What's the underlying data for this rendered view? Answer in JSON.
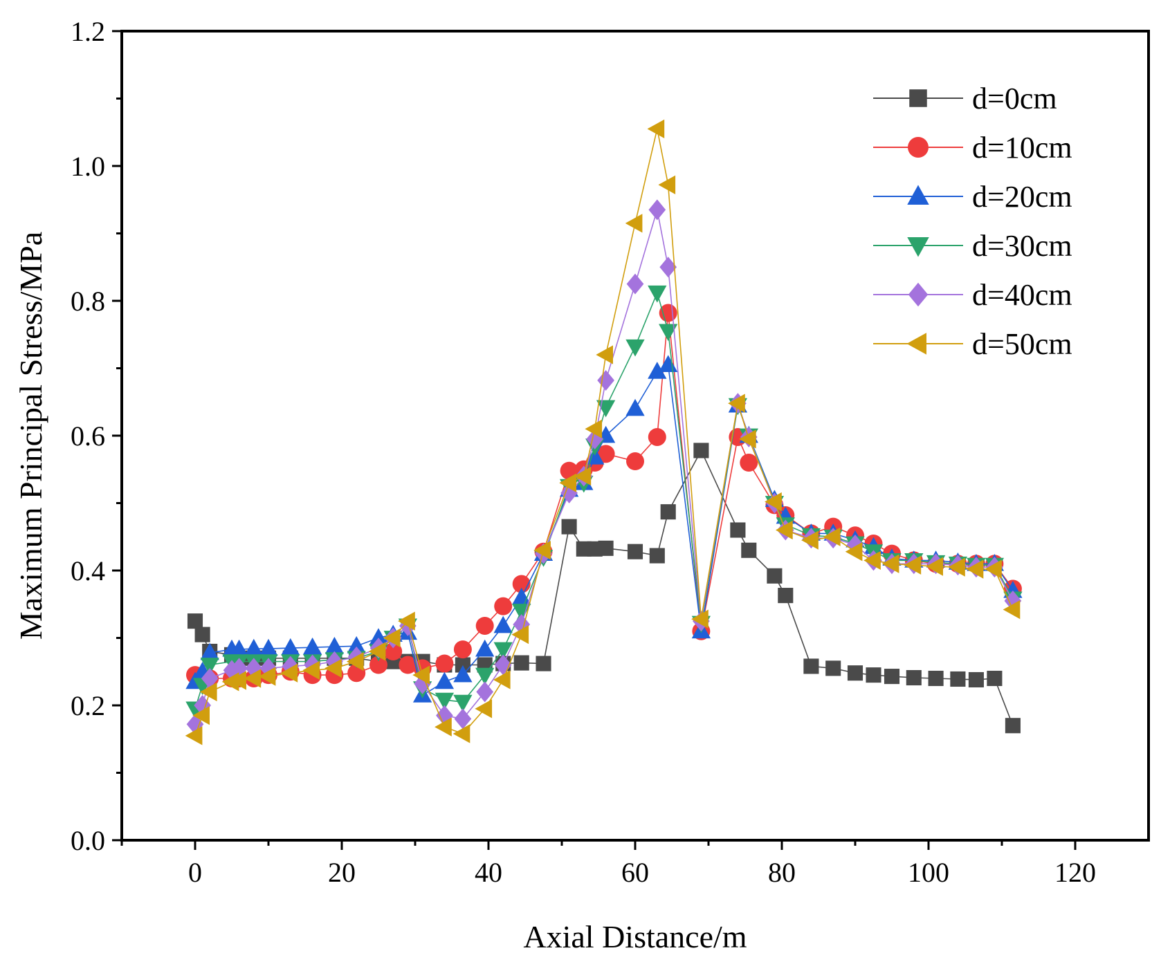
{
  "chart_data": {
    "type": "line",
    "title": "",
    "xlabel": "Axial Distance/m",
    "ylabel": "Maximum Principal Stress/MPa",
    "xlim": [
      -10,
      130
    ],
    "ylim": [
      0,
      1.2
    ],
    "xticks": [
      0,
      20,
      40,
      60,
      80,
      100,
      120
    ],
    "yticks": [
      0.0,
      0.2,
      0.4,
      0.6,
      0.8,
      1.0,
      1.2
    ],
    "xtick_labels": [
      "0",
      "20",
      "40",
      "60",
      "80",
      "100",
      "120"
    ],
    "ytick_labels": [
      "0.0",
      "0.2",
      "0.4",
      "0.6",
      "0.8",
      "1.0",
      "1.2"
    ],
    "legend_position": "top-right",
    "x": [
      0,
      1,
      2,
      5,
      6,
      8,
      10,
      13,
      16,
      19,
      22,
      25,
      27,
      29,
      31,
      34,
      36.5,
      39.5,
      42,
      44.5,
      47.5,
      51,
      53,
      54.5,
      56,
      60,
      63,
      64.5,
      69,
      74,
      75.5,
      79,
      80.5,
      84,
      87,
      90,
      92.5,
      95,
      98,
      101,
      104,
      106.5,
      109,
      111.5
    ],
    "series": [
      {
        "name": "d=0cm",
        "color": "#4a4a4a",
        "marker": "square",
        "values": [
          0.325,
          0.305,
          0.28,
          0.275,
          0.27,
          0.27,
          0.27,
          0.27,
          0.27,
          0.27,
          0.27,
          0.265,
          0.265,
          0.265,
          0.265,
          0.26,
          0.26,
          0.26,
          0.262,
          0.263,
          0.262,
          0.465,
          0.432,
          0.432,
          0.433,
          0.428,
          0.422,
          0.487,
          0.578,
          0.46,
          0.43,
          0.392,
          0.363,
          0.258,
          0.255,
          0.248,
          0.245,
          0.243,
          0.241,
          0.24,
          0.239,
          0.238,
          0.24,
          0.17
        ]
      },
      {
        "name": "d=10cm",
        "color": "#ee3c3c",
        "marker": "circle",
        "values": [
          0.245,
          0.24,
          0.24,
          0.24,
          0.24,
          0.24,
          0.245,
          0.25,
          0.245,
          0.245,
          0.248,
          0.26,
          0.28,
          0.26,
          0.255,
          0.262,
          0.283,
          0.318,
          0.347,
          0.38,
          0.428,
          0.548,
          0.55,
          0.56,
          0.573,
          0.562,
          0.598,
          0.782,
          0.31,
          0.598,
          0.56,
          0.497,
          0.482,
          0.455,
          0.465,
          0.452,
          0.44,
          0.425,
          0.415,
          0.41,
          0.41,
          0.41,
          0.41,
          0.373
        ]
      },
      {
        "name": "d=20cm",
        "color": "#1f5fd6",
        "marker": "triangle-up",
        "values": [
          0.235,
          0.25,
          0.278,
          0.283,
          0.283,
          0.284,
          0.284,
          0.285,
          0.286,
          0.287,
          0.288,
          0.3,
          0.305,
          0.308,
          0.215,
          0.235,
          0.245,
          0.283,
          0.318,
          0.36,
          0.425,
          0.52,
          0.53,
          0.568,
          0.6,
          0.64,
          0.695,
          0.705,
          0.31,
          0.645,
          0.6,
          0.505,
          0.48,
          0.455,
          0.455,
          0.445,
          0.435,
          0.418,
          0.415,
          0.415,
          0.412,
          0.41,
          0.41,
          0.37
        ]
      },
      {
        "name": "d=30cm",
        "color": "#2ba36b",
        "marker": "triangle-down",
        "values": [
          0.195,
          0.23,
          0.26,
          0.265,
          0.265,
          0.265,
          0.265,
          0.265,
          0.265,
          0.268,
          0.27,
          0.28,
          0.3,
          0.318,
          0.225,
          0.208,
          0.205,
          0.245,
          0.283,
          0.34,
          0.42,
          0.525,
          0.53,
          0.585,
          0.642,
          0.732,
          0.812,
          0.755,
          0.322,
          0.645,
          0.6,
          0.5,
          0.468,
          0.452,
          0.45,
          0.44,
          0.428,
          0.415,
          0.415,
          0.412,
          0.41,
          0.408,
          0.408,
          0.358
        ]
      },
      {
        "name": "d=40cm",
        "color": "#a473dd",
        "marker": "diamond",
        "values": [
          0.172,
          0.2,
          0.24,
          0.252,
          0.255,
          0.255,
          0.255,
          0.258,
          0.26,
          0.265,
          0.272,
          0.285,
          0.3,
          0.318,
          0.232,
          0.185,
          0.18,
          0.22,
          0.26,
          0.32,
          0.425,
          0.515,
          0.54,
          0.595,
          0.682,
          0.825,
          0.935,
          0.85,
          0.325,
          0.648,
          0.598,
          0.5,
          0.46,
          0.448,
          0.448,
          0.438,
          0.415,
          0.41,
          0.41,
          0.41,
          0.408,
          0.405,
          0.405,
          0.355
        ]
      },
      {
        "name": "d=50cm",
        "color": "#d19e0e",
        "marker": "triangle-left",
        "values": [
          0.155,
          0.185,
          0.22,
          0.235,
          0.237,
          0.24,
          0.243,
          0.248,
          0.252,
          0.255,
          0.265,
          0.28,
          0.3,
          0.325,
          0.245,
          0.168,
          0.158,
          0.195,
          0.238,
          0.305,
          0.43,
          0.53,
          0.54,
          0.61,
          0.72,
          0.915,
          1.055,
          0.972,
          0.328,
          0.648,
          0.595,
          0.502,
          0.46,
          0.445,
          0.45,
          0.428,
          0.415,
          0.41,
          0.408,
          0.406,
          0.405,
          0.402,
          0.402,
          0.342
        ]
      }
    ]
  }
}
